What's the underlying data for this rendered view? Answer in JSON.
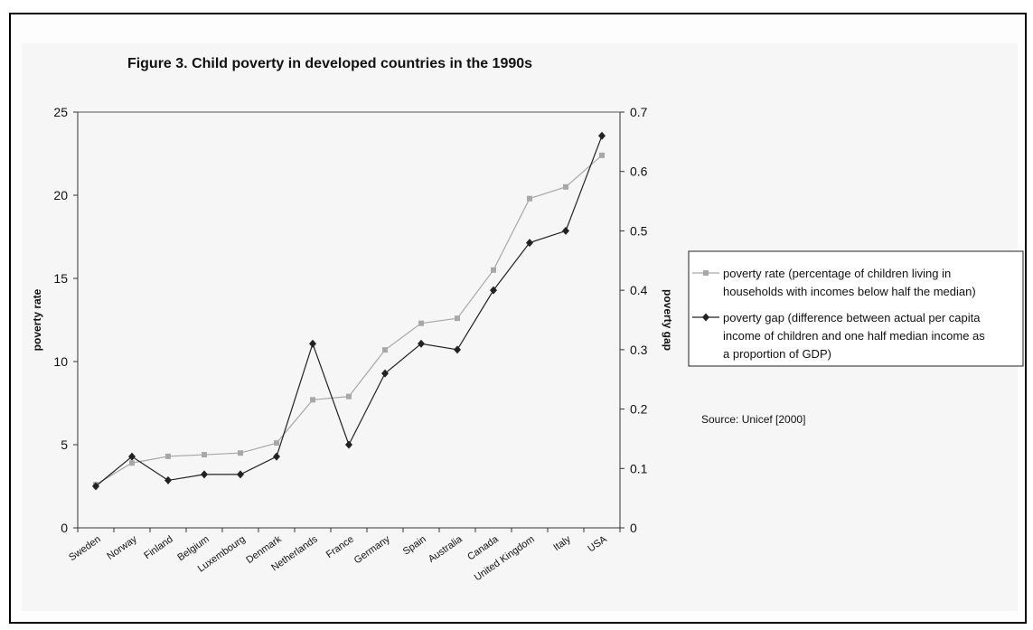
{
  "chart_data": {
    "type": "line",
    "title": "Figure 3. Child poverty in developed countries in the 1990s",
    "ylabel": "poverty rate",
    "y2label": "poverty gap",
    "ylim": [
      0,
      25
    ],
    "y2lim": [
      0,
      0.7
    ],
    "yticks": [
      "0",
      "5",
      "10",
      "15",
      "20",
      "25"
    ],
    "y2ticks": [
      "0",
      "0.1",
      "0.2",
      "0.3",
      "0.4",
      "0.5",
      "0.6",
      "0.7"
    ],
    "categories": [
      "Sweden",
      "Norway",
      "Finland",
      "Belgium",
      "Luxembourg",
      "Denmark",
      "Netherlands",
      "France",
      "Germany",
      "Spain",
      "Australia",
      "Canada",
      "United Kingdom",
      "Italy",
      "USA"
    ],
    "series": [
      {
        "name": "poverty rate (percentage of children living in households with incomes below half the median)",
        "axis": "left",
        "color": "#a8a8a8",
        "marker": "square",
        "values": [
          2.6,
          3.9,
          4.3,
          4.4,
          4.5,
          5.1,
          7.7,
          7.9,
          10.7,
          12.3,
          12.6,
          15.5,
          19.8,
          20.5,
          22.4
        ]
      },
      {
        "name": "poverty gap (difference between actual per capita income of children and one half median income as a proportion of GDP)",
        "axis": "right",
        "color": "#222222",
        "marker": "diamond",
        "values": [
          0.07,
          0.12,
          0.08,
          0.09,
          0.09,
          0.12,
          0.31,
          0.14,
          0.26,
          0.31,
          0.3,
          0.4,
          0.48,
          0.5,
          0.66
        ]
      }
    ],
    "legend": {
      "placement": "right",
      "entries": [
        [
          "poverty rate (percentage of children living in",
          "households with incomes below half the median)"
        ],
        [
          "poverty gap (difference between actual per capita",
          "income of children and one half median income as",
          "a proportion of GDP)"
        ]
      ]
    },
    "source": "Source: Unicef [2000]",
    "grid": false
  }
}
